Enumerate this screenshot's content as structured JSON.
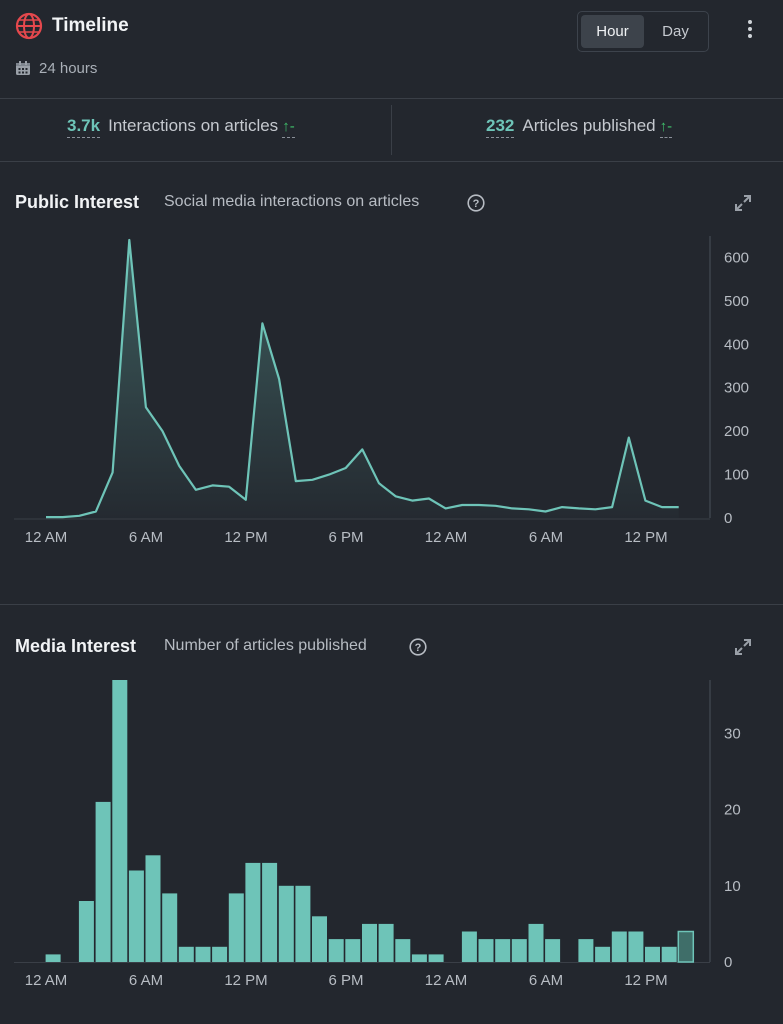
{
  "header": {
    "title": "Timeline",
    "period": "24 hours",
    "toggle": {
      "options": [
        "Hour",
        "Day"
      ],
      "selected": "Hour"
    }
  },
  "stats": [
    {
      "value": "3.7k",
      "label": "Interactions on articles",
      "trend": "↑-"
    },
    {
      "value": "232",
      "label": "Articles published",
      "trend": "↑-"
    }
  ],
  "colors": {
    "accent": "#6ec4b8",
    "background": "#23272e",
    "trend_up": "#3fbf6a",
    "globe": "#e5484d"
  },
  "public_interest": {
    "title": "Public Interest",
    "subtitle": "Social media interactions on articles"
  },
  "media_interest": {
    "title": "Media Interest",
    "subtitle": "Number of articles published"
  },
  "chart_data": [
    {
      "type": "area",
      "title": "Public Interest",
      "subtitle": "Social media interactions on articles",
      "xlabel": "",
      "ylabel": "",
      "x_tick_labels": [
        "12 AM",
        "6 AM",
        "12 PM",
        "6 PM",
        "12 AM",
        "6 AM",
        "12 PM"
      ],
      "y_ticks": [
        0,
        100,
        200,
        300,
        400,
        500,
        600
      ],
      "ylim": [
        0,
        640
      ],
      "grid": false,
      "values": [
        2,
        2,
        5,
        15,
        105,
        640,
        255,
        200,
        120,
        65,
        75,
        72,
        42,
        448,
        320,
        85,
        88,
        100,
        115,
        158,
        80,
        50,
        40,
        45,
        22,
        30,
        30,
        28,
        22,
        20,
        15,
        25,
        22,
        20,
        25,
        185,
        40,
        25,
        25
      ]
    },
    {
      "type": "bar",
      "title": "Media Interest",
      "subtitle": "Number of articles published",
      "xlabel": "",
      "ylabel": "",
      "x_tick_labels": [
        "12 AM",
        "6 AM",
        "12 PM",
        "6 PM",
        "12 AM",
        "6 AM",
        "12 PM"
      ],
      "y_ticks": [
        0,
        10,
        20,
        30
      ],
      "ylim": [
        0,
        37
      ],
      "grid": false,
      "values": [
        0,
        1,
        0,
        8,
        21,
        37,
        12,
        14,
        9,
        2,
        2,
        2,
        9,
        13,
        13,
        10,
        10,
        6,
        3,
        3,
        5,
        5,
        3,
        1,
        1,
        0,
        4,
        3,
        3,
        3,
        5,
        3,
        0,
        3,
        2,
        4,
        4,
        2,
        2,
        4
      ]
    }
  ]
}
